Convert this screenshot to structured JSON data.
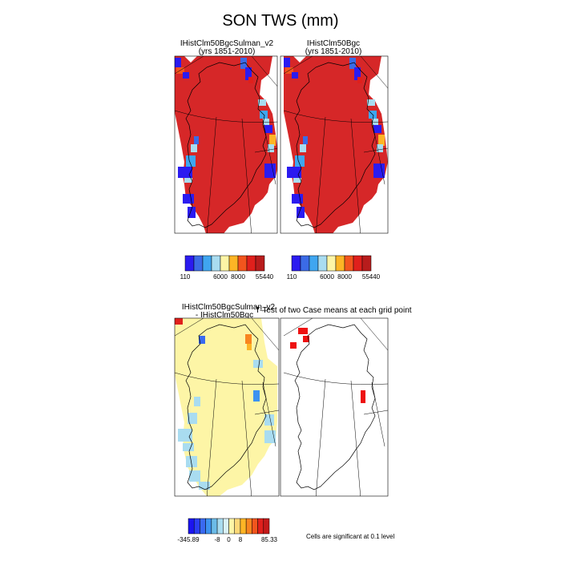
{
  "title": "SON TWS (mm)",
  "colors": {
    "land": "#d62728",
    "diff_land": "#fdf5a6",
    "sig": "#ee1111",
    "abs_levels": [
      "#2b1bf0",
      "#3b6be6",
      "#3fa6f0",
      "#a9dcf0",
      "#fdf5a6",
      "#fdb525",
      "#f2551d",
      "#e0201c",
      "#b81c1c"
    ],
    "diff_levels": [
      "#1b14f0",
      "#2b3ef2",
      "#3a6af0",
      "#3d93f0",
      "#6cbce8",
      "#a9dcf0",
      "#d9f1f7",
      "#fdf5a6",
      "#fdd978",
      "#fdb525",
      "#f8851f",
      "#f2551d",
      "#e0201c",
      "#c41a1a"
    ]
  },
  "chart_data": [
    {
      "type": "heatmap",
      "subtitle_line1": "IHistClm50BgcSulman_v2",
      "subtitle_line2": "(yrs 1851-2010)",
      "variable": "TWS (mm)",
      "region": "Greenland",
      "dominant_level_index": 8,
      "colorbar_labels": [
        "110",
        "6000",
        "8000",
        "55440"
      ]
    },
    {
      "type": "heatmap",
      "subtitle_line1": "IHistClm50Bgc",
      "subtitle_line2": "(yrs 1851-2010)",
      "variable": "TWS (mm)",
      "region": "Greenland",
      "dominant_level_index": 8,
      "colorbar_labels": [
        "110",
        "6000",
        "8000",
        "55440"
      ]
    },
    {
      "type": "heatmap",
      "subtitle_line1": "IHistClm50BgcSulman_v2",
      "subtitle_line2": " - IHistClm50Bgc",
      "variable": "TWS difference (mm)",
      "region": "Greenland",
      "dominant_level_index": 7,
      "colorbar_labels": [
        "-345.89",
        "-8",
        "0",
        "8",
        "85.33"
      ]
    },
    {
      "type": "heatmap",
      "subtitle_line1": "T-Test of two Case means at each grid point",
      "variable": "significance",
      "significance_level": 0.1,
      "note": "Cells are significant at 0.1 level"
    }
  ]
}
